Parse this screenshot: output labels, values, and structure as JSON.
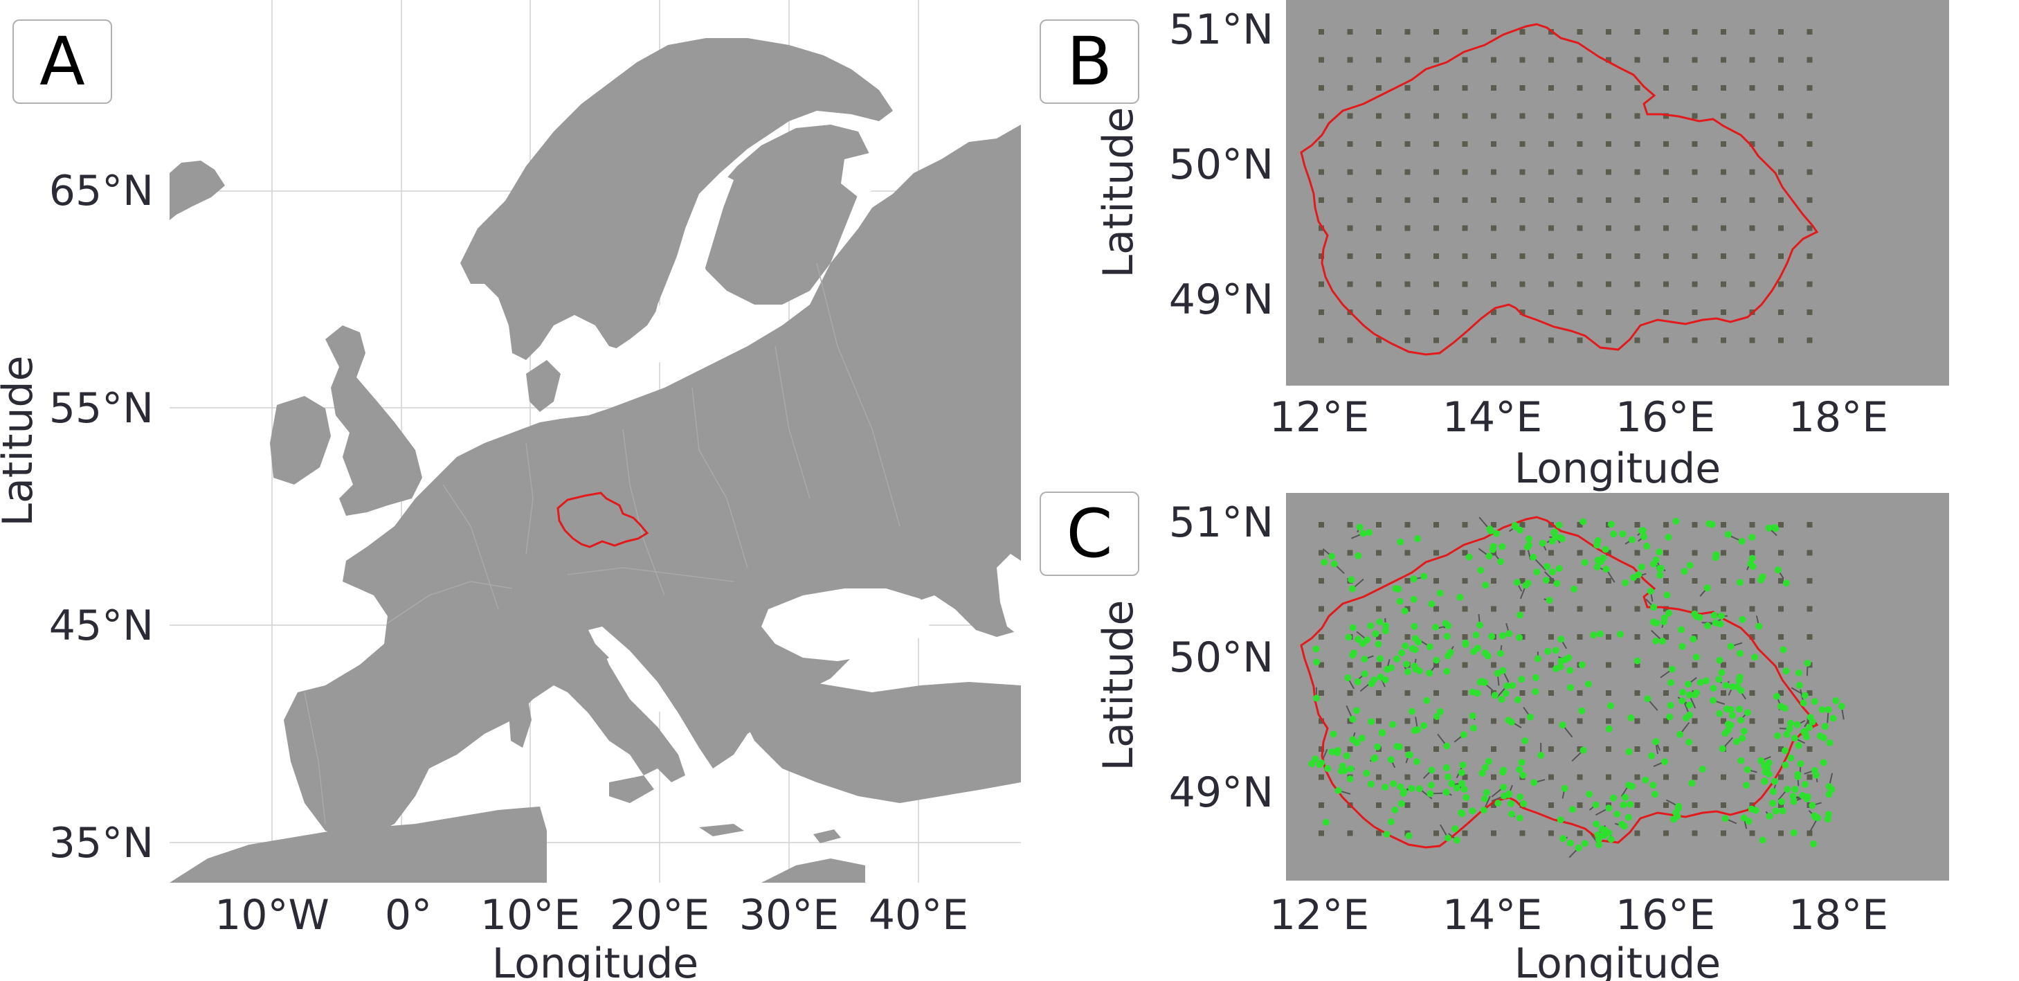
{
  "panels": {
    "A": {
      "letter": "A",
      "x_ticks": [
        "10°W",
        "0°",
        "10°E",
        "20°E",
        "30°E",
        "40°E"
      ],
      "y_ticks": [
        "65°N",
        "55°N",
        "45°N",
        "35°N"
      ],
      "x_label": "Longitude",
      "y_label": "Latitude",
      "highlight_color": "#e31a1c",
      "land_color": "#999999"
    },
    "B": {
      "letter": "B",
      "x_ticks": [
        "12°E",
        "14°E",
        "16°E",
        "18°E"
      ],
      "y_ticks": [
        "51°N",
        "50°N",
        "49°N"
      ],
      "x_label": "Longitude",
      "y_label": "Latitude",
      "grid_point_color": "#5b5b4e"
    },
    "C": {
      "letter": "C",
      "x_ticks": [
        "12°E",
        "14°E",
        "16°E",
        "18°E"
      ],
      "y_ticks": [
        "51°N",
        "50°N",
        "49°N"
      ],
      "x_label": "Longitude",
      "y_label": "Latitude",
      "station_color": "#2ee02e"
    }
  },
  "colors": {
    "map_background": "#999999",
    "sea": "#ffffff",
    "border": "#e31a1c",
    "country_lines": "#a8a8a8",
    "gridlines": "#cfcfcf"
  }
}
